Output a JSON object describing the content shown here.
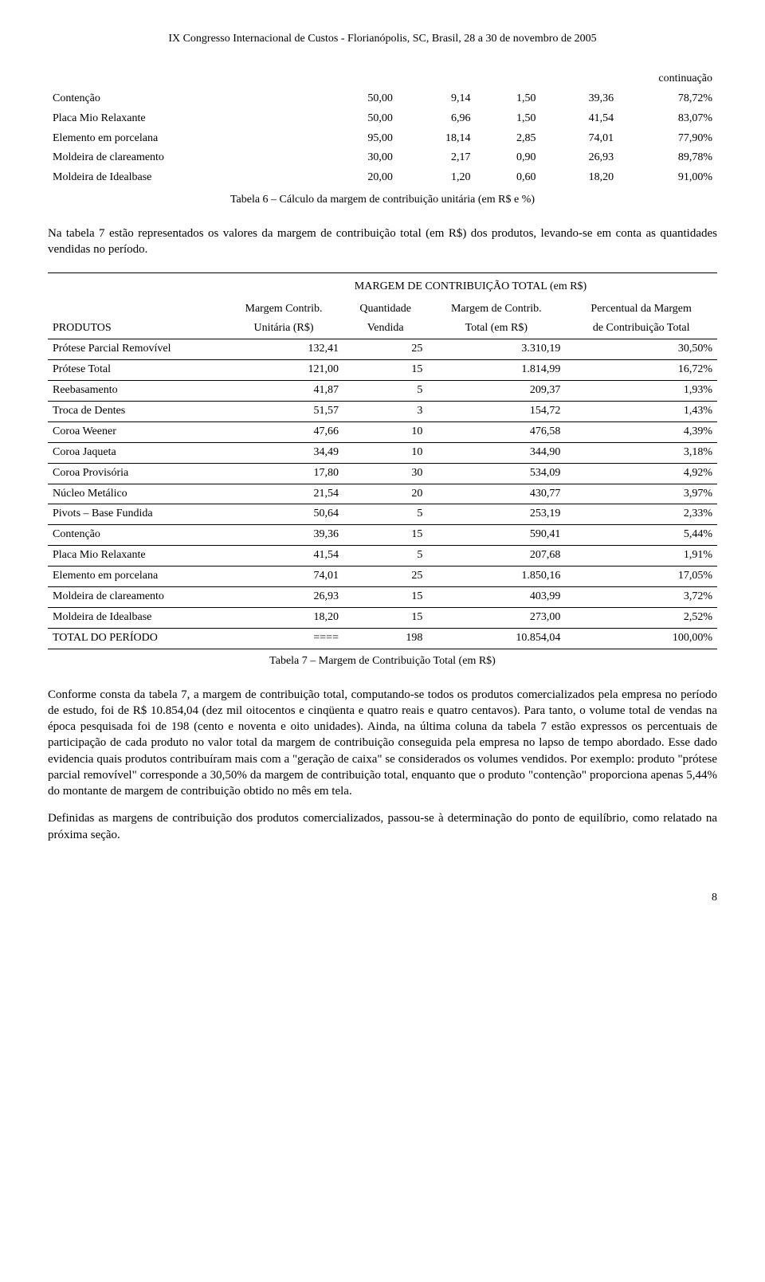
{
  "header": "IX Congresso Internacional de Custos - Florianópolis, SC, Brasil, 28 a 30 de novembro de 2005",
  "table1": {
    "continuation": "continuação",
    "rows": [
      {
        "label": "Contenção",
        "c1": "50,00",
        "c2": "9,14",
        "c3": "1,50",
        "c4": "39,36",
        "c5": "78,72%"
      },
      {
        "label": "Placa Mio Relaxante",
        "c1": "50,00",
        "c2": "6,96",
        "c3": "1,50",
        "c4": "41,54",
        "c5": "83,07%"
      },
      {
        "label": "Elemento em porcelana",
        "c1": "95,00",
        "c2": "18,14",
        "c3": "2,85",
        "c4": "74,01",
        "c5": "77,90%"
      },
      {
        "label": "Moldeira de clareamento",
        "c1": "30,00",
        "c2": "2,17",
        "c3": "0,90",
        "c4": "26,93",
        "c5": "89,78%"
      },
      {
        "label": "Moldeira de Idealbase",
        "c1": "20,00",
        "c2": "1,20",
        "c3": "0,60",
        "c4": "18,20",
        "c5": "91,00%"
      }
    ],
    "caption": "Tabela 6 – Cálculo da margem de contribuição unitária (em R$ e %)"
  },
  "para1": "Na tabela 7 estão representados os valores da margem de contribuição total (em R$) dos produtos, levando-se em conta as quantidades vendidas no período.",
  "table2": {
    "title": "MARGEM DE CONTRIBUIÇÃO TOTAL (em R$)",
    "headers": {
      "produtos": "PRODUTOS",
      "h1a": "Margem Contrib.",
      "h1b": "Unitária (R$)",
      "h2a": "Quantidade",
      "h2b": "Vendida",
      "h3a": "Margem de Contrib.",
      "h3b": "Total (em R$)",
      "h4a": "Percentual da Margem",
      "h4b": "de Contribuição Total"
    },
    "rows": [
      {
        "label": "Prótese Parcial Removível",
        "c1": "132,41",
        "c2": "25",
        "c3": "3.310,19",
        "c4": "30,50%"
      },
      {
        "label": "Prótese Total",
        "c1": "121,00",
        "c2": "15",
        "c3": "1.814,99",
        "c4": "16,72%"
      },
      {
        "label": "Reebasamento",
        "c1": "41,87",
        "c2": "5",
        "c3": "209,37",
        "c4": "1,93%"
      },
      {
        "label": "Troca de Dentes",
        "c1": "51,57",
        "c2": "3",
        "c3": "154,72",
        "c4": "1,43%"
      },
      {
        "label": "Coroa Weener",
        "c1": "47,66",
        "c2": "10",
        "c3": "476,58",
        "c4": "4,39%"
      },
      {
        "label": "Coroa Jaqueta",
        "c1": "34,49",
        "c2": "10",
        "c3": "344,90",
        "c4": "3,18%"
      },
      {
        "label": "Coroa Provisória",
        "c1": "17,80",
        "c2": "30",
        "c3": "534,09",
        "c4": "4,92%"
      },
      {
        "label": "Núcleo Metálico",
        "c1": "21,54",
        "c2": "20",
        "c3": "430,77",
        "c4": "3,97%"
      },
      {
        "label": "Pivots – Base Fundida",
        "c1": "50,64",
        "c2": "5",
        "c3": "253,19",
        "c4": "2,33%"
      },
      {
        "label": "Contenção",
        "c1": "39,36",
        "c2": "15",
        "c3": "590,41",
        "c4": "5,44%"
      },
      {
        "label": "Placa Mio Relaxante",
        "c1": "41,54",
        "c2": "5",
        "c3": "207,68",
        "c4": "1,91%"
      },
      {
        "label": "Elemento em porcelana",
        "c1": "74,01",
        "c2": "25",
        "c3": "1.850,16",
        "c4": "17,05%"
      },
      {
        "label": "Moldeira de clareamento",
        "c1": "26,93",
        "c2": "15",
        "c3": "403,99",
        "c4": "3,72%"
      },
      {
        "label": "Moldeira de Idealbase",
        "c1": "18,20",
        "c2": "15",
        "c3": "273,00",
        "c4": "2,52%"
      },
      {
        "label": "TOTAL DO PERÍODO",
        "c1": "====",
        "c2": "198",
        "c3": "10.854,04",
        "c4": "100,00%"
      }
    ],
    "caption": "Tabela 7 – Margem de Contribuição Total (em R$)"
  },
  "para2": "Conforme consta da tabela 7, a margem de contribuição total, computando-se todos os produtos comercializados pela empresa no período de estudo, foi de R$ 10.854,04 (dez mil oitocentos e cinqüenta e quatro reais e quatro centavos). Para tanto, o volume total de vendas na época pesquisada foi de 198 (cento e noventa e oito unidades). Ainda, na última coluna da tabela 7 estão expressos os percentuais de participação de cada produto no valor total da margem de contribuição conseguida pela empresa no lapso de tempo abordado. Esse dado evidencia quais produtos contribuíram mais com a \"geração de caixa\" se considerados os volumes vendidos. Por exemplo: produto \"prótese parcial removível\" corresponde a 30,50% da margem de contribuição total, enquanto que o produto \"contenção\" proporciona apenas 5,44% do montante de margem de contribuição obtido no mês em tela.",
  "para3": "Definidas as margens de contribuição dos produtos comercializados, passou-se à determinação do ponto de equilíbrio, como relatado na próxima seção.",
  "page_num": "8"
}
